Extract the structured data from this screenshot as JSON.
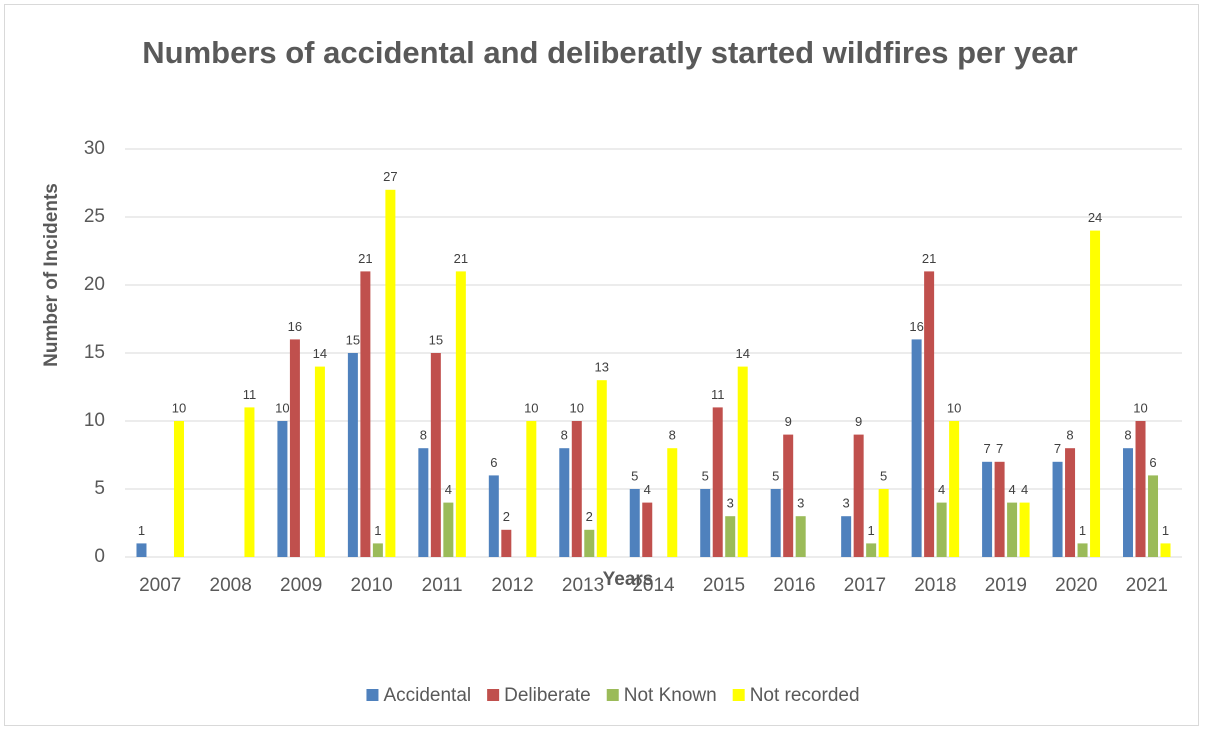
{
  "chart_data": {
    "type": "bar",
    "title": "Numbers of accidental and deliberatly started wildfires per year",
    "x_label": "Years",
    "y_label": "Number of Incidents",
    "categories": [
      "2007",
      "2008",
      "2009",
      "2010",
      "2011",
      "2012",
      "2013",
      "2014",
      "2015",
      "2016",
      "2017",
      "2018",
      "2019",
      "2020",
      "2021"
    ],
    "series": [
      {
        "name": "Accidental",
        "color": "#4f81bd",
        "values": [
          1,
          null,
          10,
          15,
          8,
          6,
          8,
          5,
          5,
          5,
          3,
          16,
          7,
          7,
          8
        ]
      },
      {
        "name": "Deliberate",
        "color": "#c0504d",
        "values": [
          null,
          null,
          16,
          21,
          15,
          2,
          10,
          4,
          11,
          9,
          9,
          21,
          7,
          8,
          10
        ]
      },
      {
        "name": "Not Known",
        "color": "#9bbb59",
        "values": [
          null,
          null,
          null,
          1,
          4,
          null,
          2,
          null,
          3,
          3,
          1,
          4,
          4,
          1,
          6
        ]
      },
      {
        "name": "Not recorded",
        "color": "#ffff00",
        "values": [
          10,
          11,
          14,
          27,
          21,
          10,
          13,
          8,
          14,
          null,
          5,
          10,
          4,
          24,
          1
        ]
      }
    ],
    "ylim": [
      0,
      30
    ],
    "yticks": [
      0,
      5,
      10,
      15,
      20,
      25,
      30
    ],
    "grid": true,
    "legend": "bottom",
    "data_labels": true
  }
}
